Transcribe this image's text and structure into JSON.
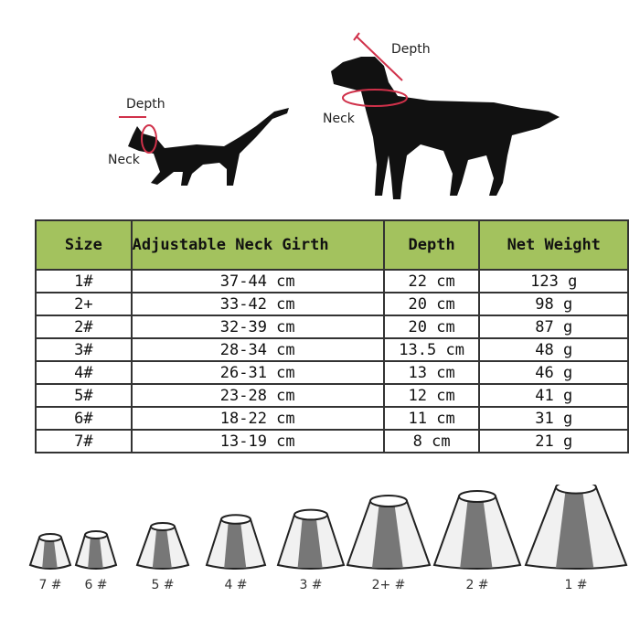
{
  "illustration": {
    "cat": {
      "depth_label": "Depth",
      "neck_label": "Neck"
    },
    "dog": {
      "depth_label": "Depth",
      "neck_label": "Neck"
    },
    "measure_color": "#d0314a"
  },
  "table": {
    "header_color": "#a3c25e",
    "headers": [
      "Size",
      "Adjustable Neck Girth",
      "Depth",
      "Net Weight"
    ],
    "rows": [
      [
        "1#",
        "37-44 cm",
        "22 cm",
        "123 g"
      ],
      [
        "2+",
        "33-42 cm",
        "20 cm",
        "98 g"
      ],
      [
        "2#",
        "32-39 cm",
        "20 cm",
        "87 g"
      ],
      [
        "3#",
        "28-34 cm",
        "13.5 cm",
        "48 g"
      ],
      [
        "4#",
        "26-31 cm",
        "13 cm",
        "46 g"
      ],
      [
        "5#",
        "23-28 cm",
        "12 cm",
        "41 g"
      ],
      [
        "6#",
        "18-22 cm",
        "11 cm",
        "31 g"
      ],
      [
        "7#",
        "13-19 cm",
        "8 cm",
        "21 g"
      ]
    ]
  },
  "cones": [
    "7 #",
    "6 #",
    "5 #",
    "4 #",
    "3 #",
    "2+ #",
    "2 #",
    "1 #"
  ]
}
